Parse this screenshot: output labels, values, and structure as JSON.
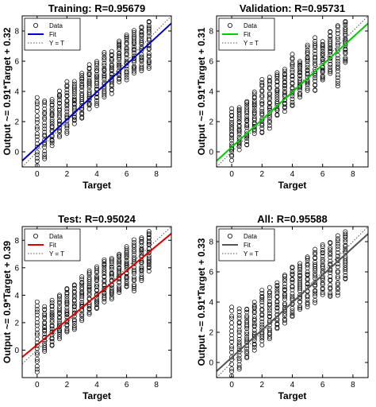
{
  "chart_data": [
    {
      "type": "scatter",
      "title": "Training: R=0.95679",
      "xlabel": "Target",
      "ylabel": "Output ~= 0.91*Target + 0.32",
      "xlim": [
        -1,
        9
      ],
      "ylim": [
        -1,
        9
      ],
      "xticks": [
        0,
        2,
        4,
        6,
        8
      ],
      "yticks": [
        0,
        2,
        4,
        6,
        8
      ],
      "grid": false,
      "legend": {
        "placement": "top-left",
        "entries": [
          "Data",
          "Fit",
          "Y = T"
        ]
      },
      "fit": {
        "slope": 0.91,
        "intercept": 0.32,
        "color": "#0000cc"
      },
      "targets": [
        0,
        0.5,
        1,
        1.5,
        2,
        2.5,
        3,
        3.5,
        4,
        4.5,
        5,
        5.5,
        6,
        6.5,
        7,
        7.5
      ],
      "spread": [
        [
          -1.4,
          3.6
        ],
        [
          -0.5,
          3.4
        ],
        [
          0.4,
          3.5
        ],
        [
          1.0,
          4.0
        ],
        [
          1.2,
          4.6
        ],
        [
          1.9,
          4.6
        ],
        [
          2.2,
          5.2
        ],
        [
          2.9,
          5.7
        ],
        [
          3.1,
          6.0
        ],
        [
          3.6,
          6.6
        ],
        [
          3.9,
          6.6
        ],
        [
          4.6,
          7.4
        ],
        [
          4.8,
          7.8
        ],
        [
          5.2,
          8.0
        ],
        [
          5.4,
          8.3
        ],
        [
          5.5,
          8.7
        ]
      ]
    },
    {
      "type": "scatter",
      "title": "Validation: R=0.95731",
      "xlabel": "Target",
      "ylabel": "Output ~= 0.91*Target + 0.31",
      "xlim": [
        -1,
        9
      ],
      "ylim": [
        -1,
        9
      ],
      "xticks": [
        0,
        2,
        4,
        6,
        8
      ],
      "yticks": [
        0,
        2,
        4,
        6,
        8
      ],
      "grid": false,
      "legend": {
        "placement": "top-left",
        "entries": [
          "Data",
          "Fit",
          "Y = T"
        ]
      },
      "fit": {
        "slope": 0.91,
        "intercept": 0.31,
        "color": "#00cc00"
      },
      "targets": [
        0,
        0.5,
        1,
        1.5,
        2,
        2.5,
        3,
        3.5,
        4,
        4.5,
        5,
        5.5,
        6,
        6.5,
        7,
        7.5
      ],
      "spread": [
        [
          -0.5,
          2.8
        ],
        [
          0.2,
          3.0
        ],
        [
          0.4,
          3.4
        ],
        [
          1.2,
          3.9
        ],
        [
          1.2,
          4.8
        ],
        [
          1.6,
          4.9
        ],
        [
          2.4,
          5.3
        ],
        [
          2.7,
          5.5
        ],
        [
          3.0,
          6.4
        ],
        [
          3.6,
          6.0
        ],
        [
          4.1,
          7.0
        ],
        [
          4.0,
          7.5
        ],
        [
          4.7,
          7.3
        ],
        [
          5.2,
          8.0
        ],
        [
          4.3,
          8.4
        ],
        [
          5.9,
          8.7
        ]
      ]
    },
    {
      "type": "scatter",
      "title": "Test: R=0.95024",
      "xlabel": "Target",
      "ylabel": "Output ~= 0.9*Target + 0.39",
      "xlim": [
        -1,
        9
      ],
      "ylim": [
        -2,
        9
      ],
      "xticks": [
        0,
        2,
        4,
        6,
        8
      ],
      "yticks": [
        0,
        2,
        4,
        6,
        8
      ],
      "grid": false,
      "legend": {
        "placement": "top-left",
        "entries": [
          "Data",
          "Fit",
          "Y = T"
        ]
      },
      "fit": {
        "slope": 0.9,
        "intercept": 0.39,
        "color": "#dd0000"
      },
      "targets": [
        0,
        0.5,
        1,
        1.5,
        2,
        2.5,
        3,
        3.5,
        4,
        4.5,
        5,
        5.5,
        6,
        6.5,
        7,
        7.5
      ],
      "spread": [
        [
          -1.6,
          3.5
        ],
        [
          -0.1,
          3.2
        ],
        [
          0.3,
          3.6
        ],
        [
          0.8,
          4.0
        ],
        [
          1.3,
          4.5
        ],
        [
          1.5,
          4.8
        ],
        [
          2.2,
          5.3
        ],
        [
          2.6,
          5.8
        ],
        [
          3.0,
          6.0
        ],
        [
          3.5,
          6.6
        ],
        [
          3.7,
          6.7
        ],
        [
          4.2,
          7.0
        ],
        [
          4.6,
          7.5
        ],
        [
          4.3,
          8.0
        ],
        [
          5.1,
          8.2
        ],
        [
          5.8,
          8.7
        ]
      ]
    },
    {
      "type": "scatter",
      "title": "All: R=0.95588",
      "xlabel": "Target",
      "ylabel": "Output ~= 0.91*Target + 0.33",
      "xlim": [
        -1,
        9
      ],
      "ylim": [
        -1,
        9
      ],
      "xticks": [
        0,
        2,
        4,
        6,
        8
      ],
      "yticks": [
        0,
        2,
        4,
        6,
        8
      ],
      "grid": false,
      "legend": {
        "placement": "top-left",
        "entries": [
          "Data",
          "Fit",
          "Y = T"
        ]
      },
      "fit": {
        "slope": 0.91,
        "intercept": 0.33,
        "color": "#555555"
      },
      "targets": [
        0,
        0.5,
        1,
        1.5,
        2,
        2.5,
        3,
        3.5,
        4,
        4.5,
        5,
        5.5,
        6,
        6.5,
        7,
        7.5
      ],
      "spread": [
        [
          -1.6,
          3.6
        ],
        [
          -0.5,
          3.5
        ],
        [
          0.3,
          3.6
        ],
        [
          0.8,
          4.0
        ],
        [
          1.2,
          4.8
        ],
        [
          1.5,
          4.9
        ],
        [
          2.2,
          5.3
        ],
        [
          2.6,
          5.8
        ],
        [
          3.0,
          6.4
        ],
        [
          3.5,
          6.6
        ],
        [
          3.7,
          7.0
        ],
        [
          4.0,
          7.5
        ],
        [
          4.5,
          7.8
        ],
        [
          4.3,
          8.0
        ],
        [
          4.4,
          8.4
        ],
        [
          5.5,
          8.7
        ]
      ]
    }
  ]
}
